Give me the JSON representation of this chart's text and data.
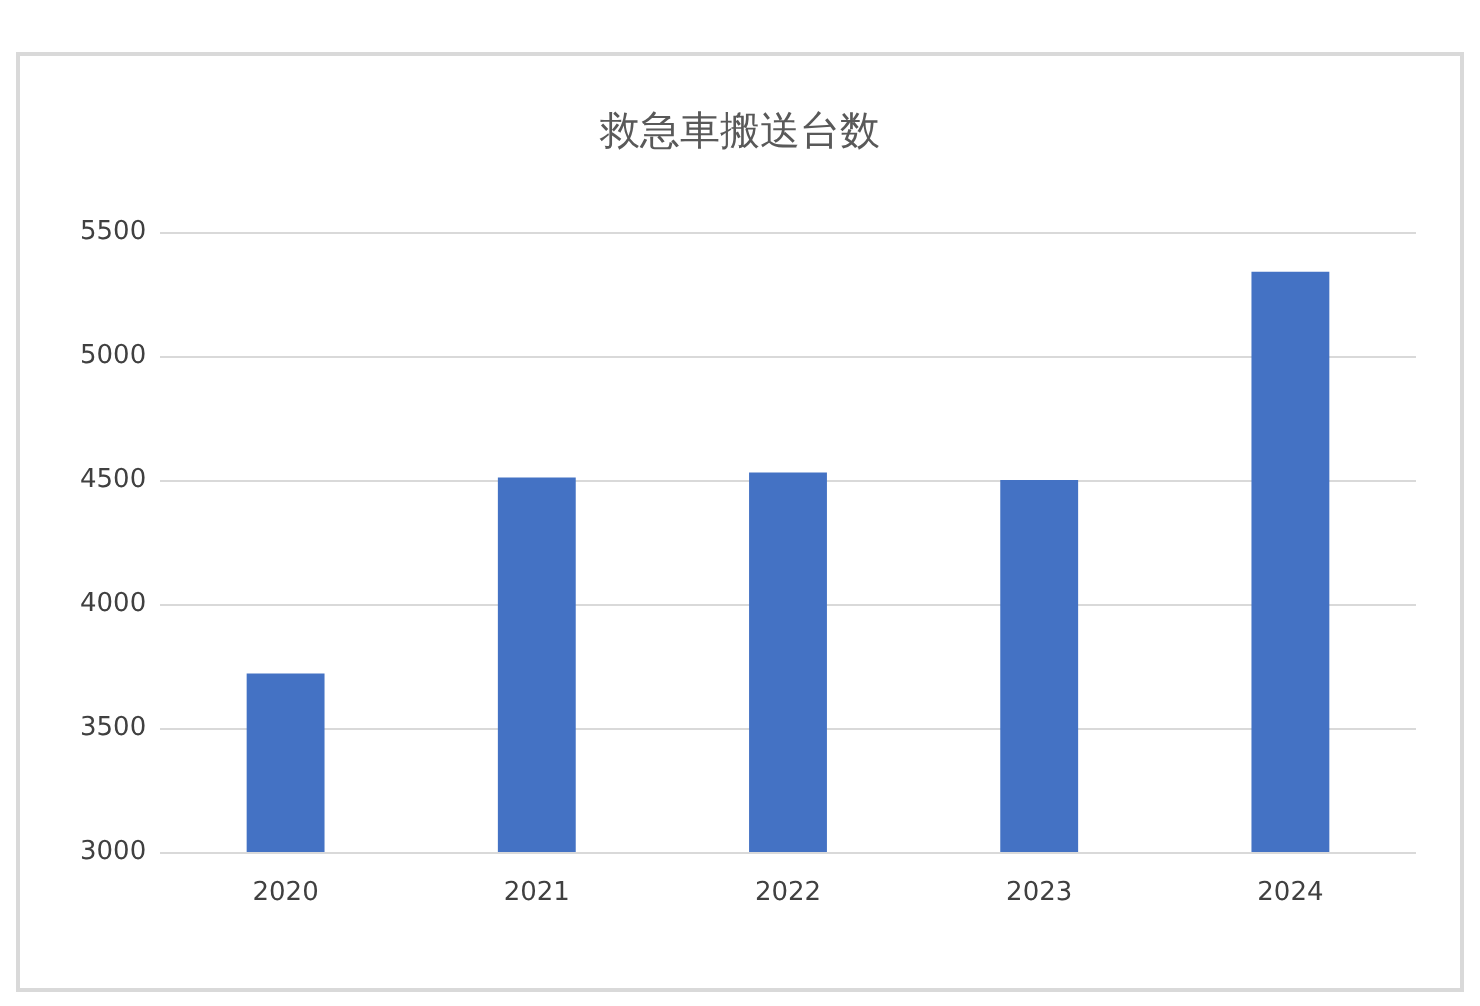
{
  "chart_data": {
    "type": "bar",
    "title": "救急車搬送台数",
    "categories": [
      "2020",
      "2021",
      "2022",
      "2023",
      "2024"
    ],
    "values": [
      3720,
      4510,
      4530,
      4500,
      5340
    ],
    "color": "#4472c4",
    "ylim": [
      3000,
      5500
    ],
    "yticks": [
      3000,
      3500,
      4000,
      4500,
      5000,
      5500
    ],
    "grid": "y"
  }
}
